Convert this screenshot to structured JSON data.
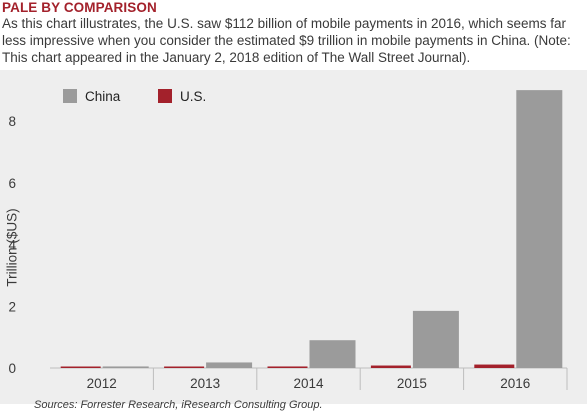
{
  "header": {
    "title": "PALE BY COMPARISON",
    "description": "As this chart illustrates, the U.S. saw $112 billion of mobile payments in 2016, which seems far less impressive when you consider the estimated $9 trillion in mobile payments in China. (Note: This chart appeared in the January 2, 2018 edition of The Wall Street Journal)."
  },
  "footer": {
    "source": "Sources: Forrester Research, iResearch Consulting Group."
  },
  "colors": {
    "china": "#9b9b9b",
    "us": "#a3212b",
    "title": "#a3212b",
    "panel": "#eeeeee"
  },
  "chart_data": {
    "type": "bar",
    "categories": [
      "2012",
      "2013",
      "2014",
      "2015",
      "2016"
    ],
    "series": [
      {
        "name": "China",
        "values": [
          0.05,
          0.18,
          0.9,
          1.85,
          9.0
        ]
      },
      {
        "name": "U.S.",
        "values": [
          0.01,
          0.03,
          0.05,
          0.08,
          0.112
        ]
      }
    ],
    "ylabel": "Trillion ($US)",
    "ylim": [
      0,
      9
    ],
    "yticks": [
      0,
      2,
      4,
      6,
      8
    ],
    "legend_position": "top-left",
    "grid": false
  }
}
